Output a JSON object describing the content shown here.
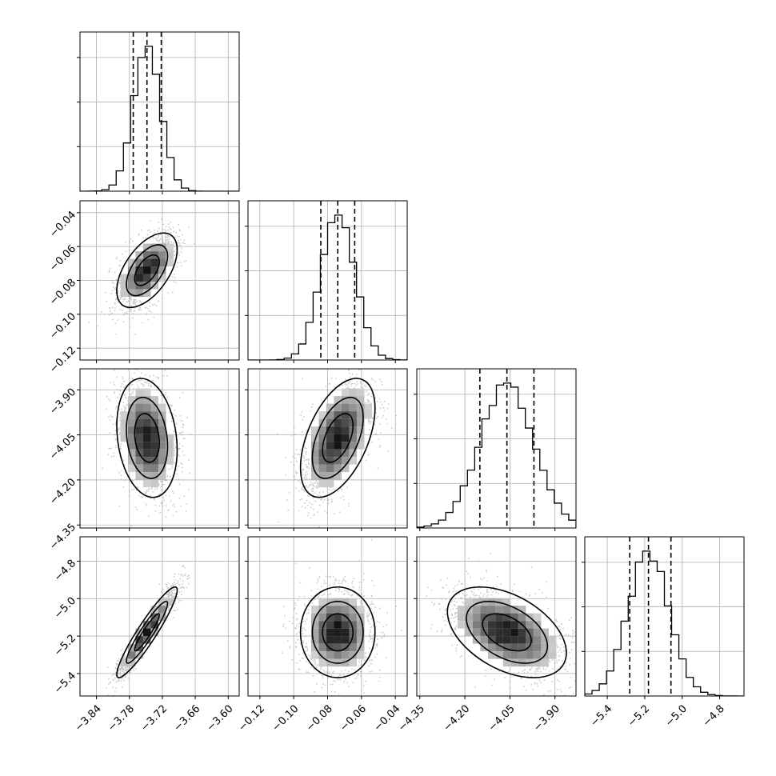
{
  "chart_data": {
    "type": "corner",
    "grid": true,
    "parameters": [
      {
        "range": [
          -3.87,
          -3.58
        ],
        "ticks": [
          -3.84,
          -3.78,
          -3.72,
          -3.66,
          -3.6
        ],
        "tick_labels": [
          "−3.84",
          "−3.78",
          "−3.72",
          "−3.66",
          "−3.60"
        ],
        "quantiles": [
          -3.773,
          -3.748,
          -3.722
        ],
        "mean": -3.748,
        "sd": 0.025
      },
      {
        "range": [
          -0.127,
          -0.033
        ],
        "ticks": [
          -0.12,
          -0.1,
          -0.08,
          -0.06,
          -0.04
        ],
        "tick_labels": [
          "−0.12",
          "−0.10",
          "−0.08",
          "−0.06",
          "−0.04"
        ],
        "quantiles": [
          -0.084,
          -0.074,
          -0.064
        ],
        "mean": -0.074,
        "sd": 0.01
      },
      {
        "range": [
          -4.36,
          -3.83
        ],
        "ticks": [
          -4.35,
          -4.2,
          -4.05,
          -3.9
        ],
        "tick_labels": [
          "−4.35",
          "−4.20",
          "−4.05",
          "−3.90"
        ],
        "quantiles": [
          -4.15,
          -4.06,
          -3.97
        ],
        "mean": -4.06,
        "sd": 0.09
      },
      {
        "range": [
          -5.52,
          -4.67
        ],
        "ticks": [
          -5.4,
          -5.2,
          -5.0,
          -4.8
        ],
        "tick_labels": [
          "−5.4",
          "−5.2",
          "−5.0",
          "−4.8"
        ],
        "quantiles": [
          -5.28,
          -5.18,
          -5.06
        ],
        "mean": -5.18,
        "sd": 0.11
      }
    ],
    "correlations": [
      {
        "pair": [
          1,
          0
        ],
        "rho": 0.55
      },
      {
        "pair": [
          2,
          0
        ],
        "rho": -0.2
      },
      {
        "pair": [
          2,
          1
        ],
        "rho": 0.5
      },
      {
        "pair": [
          3,
          0
        ],
        "rho": 0.93
      },
      {
        "pair": [
          3,
          1
        ],
        "rho": 0.0
      },
      {
        "pair": [
          3,
          2
        ],
        "rho": -0.45
      }
    ]
  }
}
